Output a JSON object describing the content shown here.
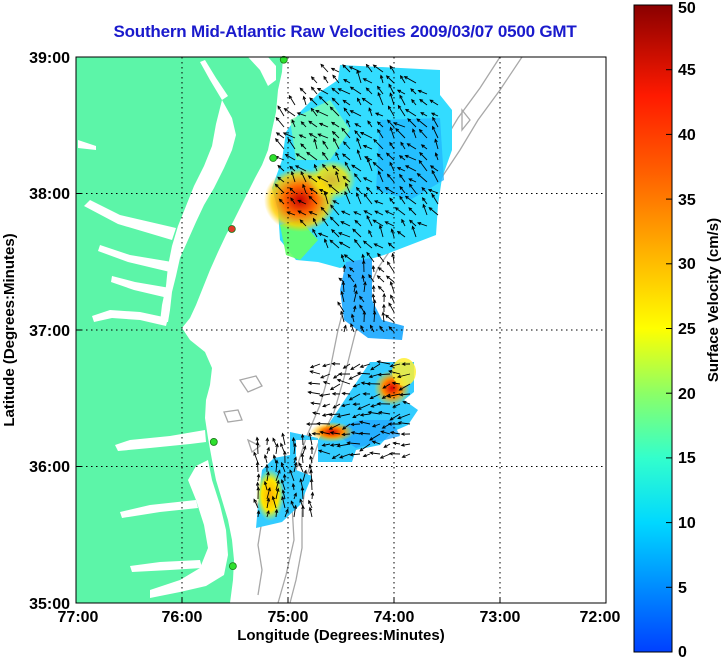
{
  "title": "Southern Mid-Atlantic Raw Velocities 2009/03/07 0500 GMT",
  "xaxis": {
    "label": "Longitude (Degrees:Minutes)",
    "ticks": [
      "77:00",
      "76:00",
      "75:00",
      "74:00",
      "73:00",
      "72:00"
    ],
    "range": [
      -77,
      -72
    ]
  },
  "yaxis": {
    "label": "Latitude (Degrees:Minutes)",
    "ticks": [
      "35:00",
      "36:00",
      "37:00",
      "38:00",
      "39:00"
    ],
    "range": [
      35,
      39
    ]
  },
  "colorbar": {
    "label": "Surface Velocity (cm/s)",
    "ticks": [
      "0",
      "5",
      "10",
      "15",
      "20",
      "25",
      "30",
      "35",
      "40",
      "45",
      "50"
    ],
    "range": [
      0,
      50
    ]
  },
  "colors": {
    "land": "#5cf5a8",
    "water": "#ffffff",
    "bathymetry": "#a8a8a8",
    "title": "#1a1acc",
    "station": "#2ee02e",
    "station_alt": "#e03a2a",
    "grid": "#000000"
  },
  "grid": "dotted",
  "stations": [
    {
      "lon": -75.04,
      "lat": 38.98,
      "type": "station"
    },
    {
      "lon": -75.14,
      "lat": 38.26,
      "type": "station"
    },
    {
      "lon": -75.53,
      "lat": 37.74,
      "type": "station_alt"
    },
    {
      "lon": -75.7,
      "lat": 36.18,
      "type": "station"
    },
    {
      "lon": -75.52,
      "lat": 35.27,
      "type": "station"
    }
  ]
}
